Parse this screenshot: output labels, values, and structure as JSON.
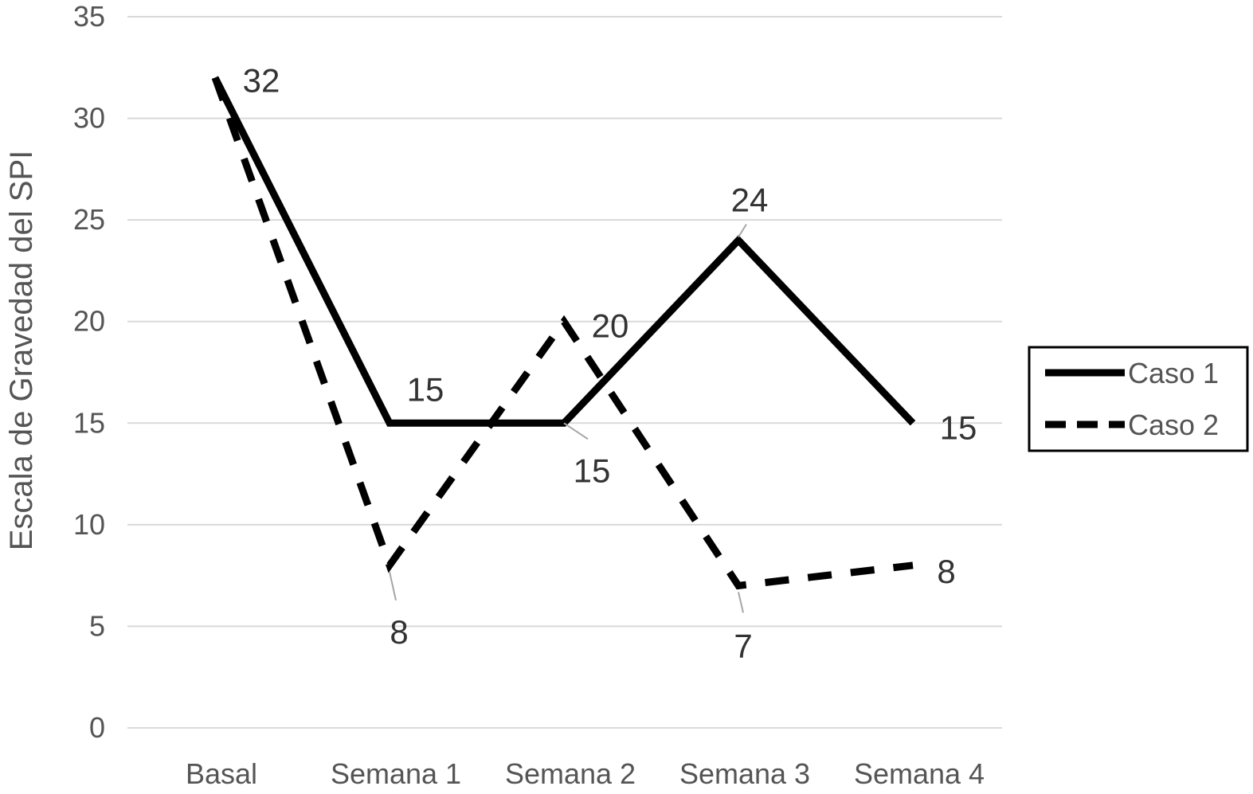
{
  "chart_data": {
    "type": "line",
    "title": "",
    "ylabel": "Escala de Gravedad del SPI",
    "xlabel": "",
    "categories": [
      "Basal",
      "Semana 1",
      "Semana 2",
      "Semana 3",
      "Semana 4"
    ],
    "ylim": [
      0,
      35
    ],
    "yticks": [
      0,
      5,
      10,
      15,
      20,
      25,
      30,
      35
    ],
    "grid": true,
    "legend_position": "right",
    "series": [
      {
        "name": "Caso 1",
        "values": [
          32,
          15,
          15,
          24,
          15
        ],
        "style": "solid",
        "color": "#000000"
      },
      {
        "name": "Caso 2",
        "values": [
          32,
          8,
          20,
          7,
          8
        ],
        "style": "dashed",
        "color": "#000000"
      }
    ],
    "data_labels": [
      {
        "series": 0,
        "index": 0,
        "text": "32"
      },
      {
        "series": 0,
        "index": 1,
        "text": "15"
      },
      {
        "series": 0,
        "index": 2,
        "text": "15"
      },
      {
        "series": 0,
        "index": 3,
        "text": "24"
      },
      {
        "series": 0,
        "index": 4,
        "text": "15"
      },
      {
        "series": 1,
        "index": 1,
        "text": "8"
      },
      {
        "series": 1,
        "index": 2,
        "text": "20"
      },
      {
        "series": 1,
        "index": 3,
        "text": "7"
      },
      {
        "series": 1,
        "index": 4,
        "text": "8"
      }
    ]
  }
}
